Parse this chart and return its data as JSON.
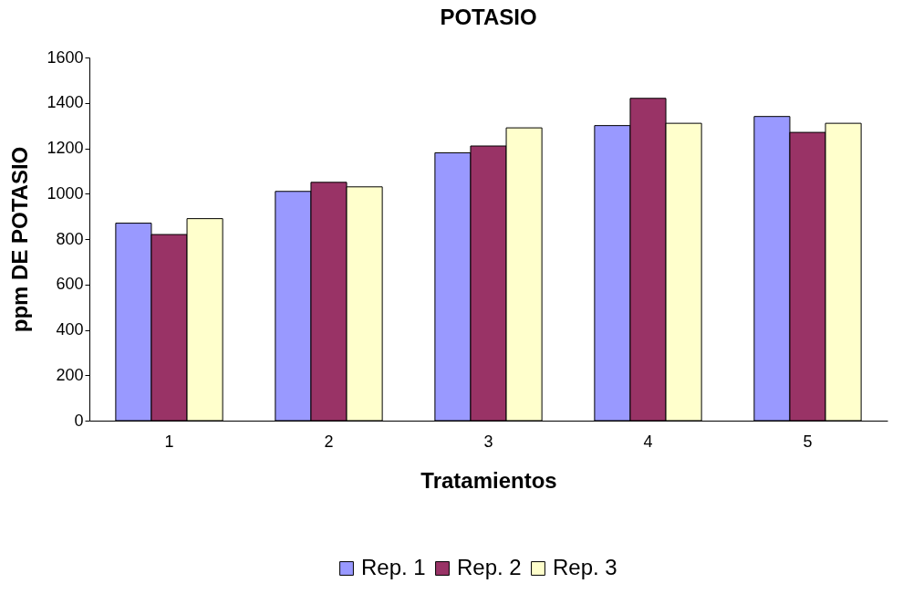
{
  "chart_data": {
    "type": "bar",
    "title": "POTASIO",
    "xlabel": "Tratamientos",
    "ylabel": "ppm DE POTASIO",
    "categories": [
      "1",
      "2",
      "3",
      "4",
      "5"
    ],
    "series": [
      {
        "name": "Rep. 1",
        "color": "#9999ff",
        "values": [
          870,
          1010,
          1180,
          1300,
          1340
        ]
      },
      {
        "name": "Rep. 2",
        "color": "#993366",
        "values": [
          820,
          1050,
          1210,
          1420,
          1270
        ]
      },
      {
        "name": "Rep. 3",
        "color": "#ffffcc",
        "values": [
          890,
          1030,
          1290,
          1310,
          1310
        ]
      }
    ],
    "ylim": [
      0,
      1600
    ],
    "yticks": [
      0,
      200,
      400,
      600,
      800,
      1000,
      1200,
      1400,
      1600
    ],
    "grid": false,
    "legend": "bottom"
  }
}
